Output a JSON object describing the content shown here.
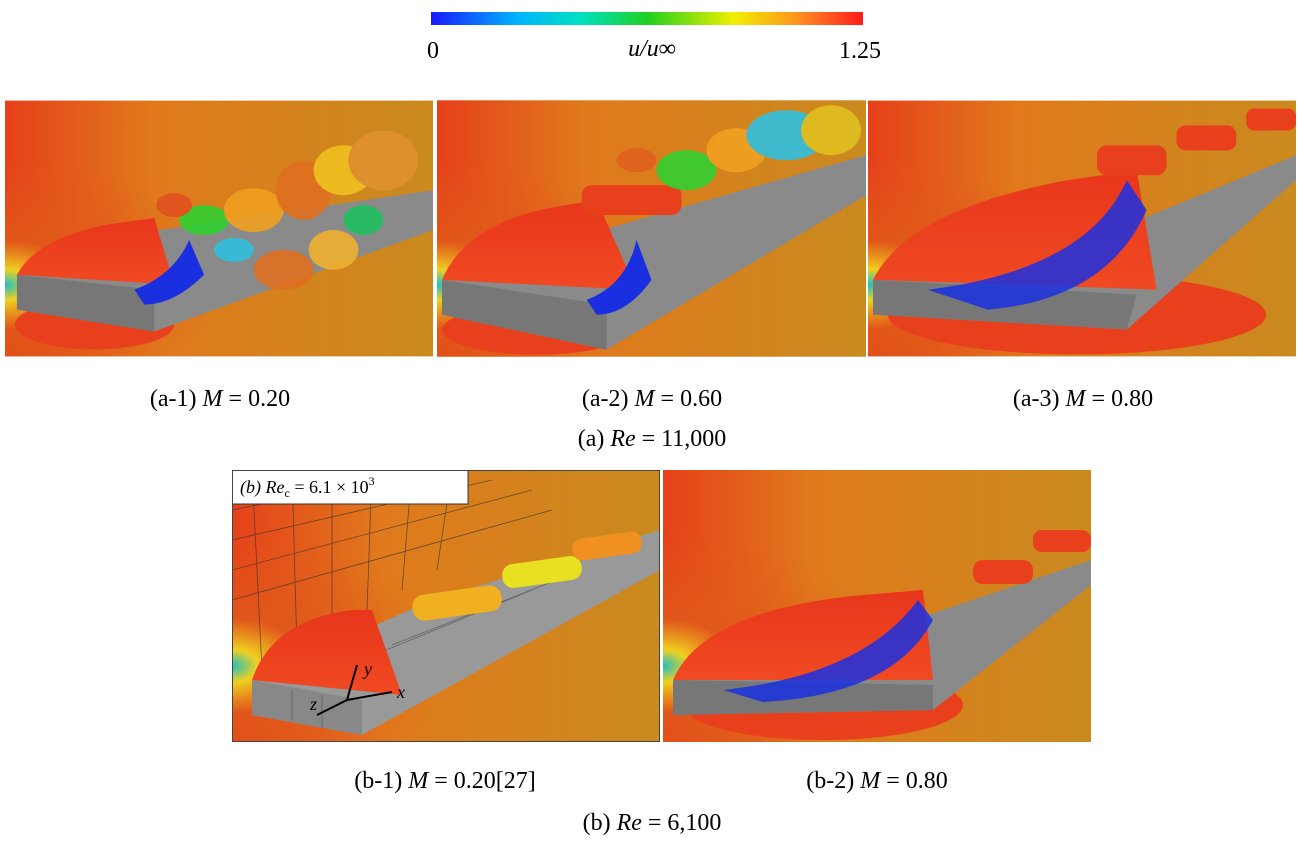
{
  "colorbar": {
    "min": "0",
    "label": "u/u∞",
    "max": "1.25"
  },
  "groups": [
    {
      "caption": {
        "label": "(a)",
        "var": "Re",
        "value": "= 11,000"
      },
      "panels": [
        {
          "caption": {
            "label": "(a-1)",
            "var": "M",
            "value": "= 0.20"
          }
        },
        {
          "caption": {
            "label": "(a-2)",
            "var": "M",
            "value": "= 0.60"
          }
        },
        {
          "caption": {
            "label": "(a-3)",
            "var": "M",
            "value": "= 0.80"
          }
        }
      ]
    },
    {
      "caption": {
        "label": "(b)",
        "var": "Re",
        "value": "= 6,100"
      },
      "panels": [
        {
          "caption": {
            "label": "(b-1)",
            "var": "M",
            "value": "= 0.20[27]"
          }
        },
        {
          "caption": {
            "label": "(b-2)",
            "var": "M",
            "value": "= 0.80"
          }
        }
      ]
    }
  ],
  "inset": {
    "label": "(b)",
    "var": "Re",
    "sub": "c",
    "value": "= 6.1 × 10",
    "exp": "3",
    "axes": [
      "y",
      "z",
      "x"
    ]
  }
}
